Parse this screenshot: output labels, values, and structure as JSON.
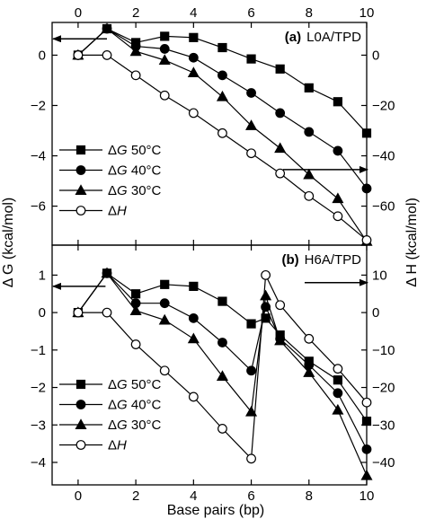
{
  "figure": {
    "left_axis_label": "Δ G (kcal/mol)",
    "right_axis_label": "Δ H (kcal/mol)",
    "x_axis_label": "Base pairs (bp)"
  },
  "chart_data": [
    {
      "type": "line",
      "panel_tag": "(a)",
      "title": "L0A/TPD",
      "xlabel": "Base pairs (bp)",
      "xlim": [
        -0.9,
        10
      ],
      "x_ticks": [
        0,
        2,
        4,
        6,
        8,
        10
      ],
      "y_left": {
        "label": "Δ G (kcal/mol)",
        "lim": [
          -7.55,
          1.3
        ],
        "ticks": [
          0,
          -2,
          -4,
          -6
        ]
      },
      "y_right": {
        "label": "Δ H (kcal/mol)",
        "lim": [
          -75.5,
          13
        ],
        "ticks": [
          0,
          -20,
          -40,
          -60
        ]
      },
      "legend_position": "bottom-left",
      "grid": false,
      "series": [
        {
          "name": "ΔG 50°C",
          "marker": "square",
          "fill": "filled",
          "axis": "left",
          "x": [
            0,
            1,
            2,
            3,
            4,
            5,
            6,
            7,
            8,
            9,
            10
          ],
          "y": [
            0,
            1.05,
            0.5,
            0.75,
            0.7,
            0.3,
            -0.15,
            -0.55,
            -1.3,
            -1.85,
            -3.1
          ]
        },
        {
          "name": "ΔG 40°C",
          "marker": "circle",
          "fill": "filled",
          "axis": "left",
          "x": [
            0,
            1,
            2,
            3,
            4,
            5,
            6,
            7,
            8,
            9,
            10
          ],
          "y": [
            0,
            1.05,
            0.35,
            0.25,
            -0.1,
            -0.8,
            -1.5,
            -2.3,
            -3.05,
            -3.8,
            -5.3
          ]
        },
        {
          "name": "ΔG 30°C",
          "marker": "triangle",
          "fill": "filled",
          "axis": "left",
          "x": [
            0,
            1,
            2,
            3,
            4,
            5,
            6,
            7,
            8,
            9,
            10
          ],
          "y": [
            0,
            1.05,
            0.15,
            -0.2,
            -0.7,
            -1.65,
            -2.8,
            -3.7,
            -4.75,
            -5.7,
            -7.4
          ]
        },
        {
          "name": "ΔH",
          "marker": "circle",
          "fill": "open",
          "axis": "right",
          "x": [
            0,
            1,
            2,
            3,
            4,
            5,
            6,
            7,
            8,
            9,
            10
          ],
          "y": [
            0,
            0,
            -8,
            -16,
            -23,
            -31,
            -39,
            -47,
            -56,
            -64,
            -73.5
          ]
        }
      ],
      "arrows": [
        {
          "points_to": "left axis",
          "at_x": 1.0,
          "at_y": 0.65
        },
        {
          "points_to": "right axis",
          "at_x": 7.1,
          "at_y": -45.5
        }
      ]
    },
    {
      "type": "line",
      "panel_tag": "(b)",
      "title": "H6A/TPD",
      "xlabel": "Base pairs (bp)",
      "xlim": [
        -0.9,
        10
      ],
      "x_ticks": [
        0,
        2,
        4,
        6,
        8,
        10
      ],
      "y_left": {
        "label": "Δ G (kcal/mol)",
        "lim": [
          -4.6,
          1.8
        ],
        "ticks": [
          1,
          0,
          -1,
          -2,
          -3,
          -4
        ]
      },
      "y_right": {
        "label": "Δ H (kcal/mol)",
        "lim": [
          -46,
          18
        ],
        "ticks": [
          10,
          0,
          -10,
          -20,
          -30,
          -40
        ]
      },
      "legend_position": "bottom-left",
      "grid": false,
      "series": [
        {
          "name": "ΔG 50°C",
          "marker": "square",
          "fill": "filled",
          "axis": "left",
          "x": [
            0,
            1,
            2,
            3,
            4,
            5,
            6,
            6.5,
            7,
            8,
            9,
            10
          ],
          "y": [
            0,
            1.05,
            0.5,
            0.75,
            0.7,
            0.3,
            -0.3,
            -0.15,
            -0.6,
            -1.3,
            -1.8,
            -2.9
          ]
        },
        {
          "name": "ΔG 40°C",
          "marker": "circle",
          "fill": "filled",
          "axis": "left",
          "x": [
            0,
            1,
            2,
            3,
            4,
            5,
            6,
            6.5,
            7,
            8,
            9,
            10
          ],
          "y": [
            0,
            1.05,
            0.25,
            0.25,
            -0.15,
            -0.8,
            -1.55,
            0.15,
            -0.7,
            -1.4,
            -2.15,
            -3.65
          ]
        },
        {
          "name": "ΔG 30°C",
          "marker": "triangle",
          "fill": "filled",
          "axis": "left",
          "x": [
            0,
            1,
            2,
            3,
            4,
            5,
            6,
            6.5,
            7,
            8,
            9,
            10
          ],
          "y": [
            0,
            1.05,
            0.05,
            -0.2,
            -0.7,
            -1.7,
            -2.65,
            0.45,
            -0.75,
            -1.6,
            -2.6,
            -4.35
          ]
        },
        {
          "name": "ΔH",
          "marker": "circle",
          "fill": "open",
          "axis": "right",
          "x": [
            0,
            1,
            2,
            3,
            4,
            5,
            6,
            6.5,
            7,
            8,
            9,
            10
          ],
          "y": [
            0,
            0,
            -8.5,
            -15.5,
            -22.5,
            -31,
            -39,
            10,
            2,
            -7,
            -15,
            -24
          ]
        }
      ],
      "arrows": [
        {
          "points_to": "left axis",
          "at_x": 0.95,
          "at_y": 0.7
        },
        {
          "points_to": "right axis",
          "at_x": 7.85,
          "at_y": 8
        }
      ]
    }
  ]
}
